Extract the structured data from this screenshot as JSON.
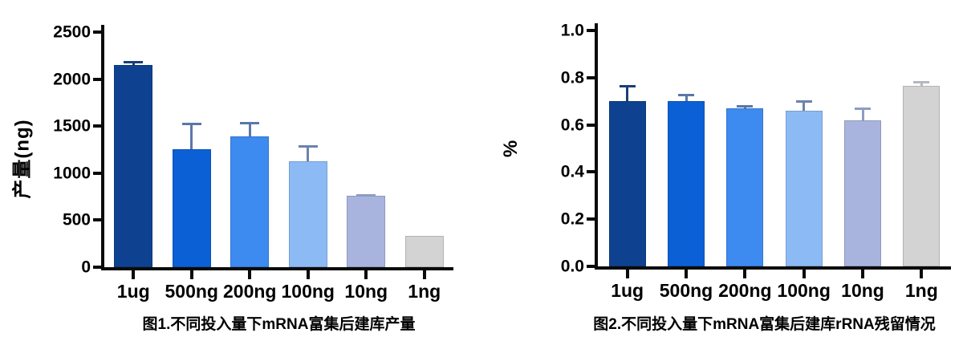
{
  "figure": {
    "background": "#ffffff",
    "axis_color": "#0a0a0a",
    "text_color": "#000000"
  },
  "chart_data": [
    {
      "type": "bar",
      "title": "图1.不同投入量下mRNA富集后建库产量",
      "ylabel": "产量(ng)",
      "xlabel": "",
      "ylim": [
        0,
        2500
      ],
      "yticks": [
        0,
        500,
        1000,
        1500,
        2000,
        2500
      ],
      "ytick_labels": [
        "0",
        "500",
        "1000",
        "1500",
        "2000",
        "2500"
      ],
      "categories": [
        "1ug",
        "500ng",
        "200ng",
        "100ng",
        "10ng",
        "1ng"
      ],
      "series": [
        {
          "name": "产量(ng)",
          "values": [
            2150,
            1255,
            1390,
            1130,
            760,
            330
          ],
          "errors": [
            40,
            280,
            155,
            170,
            15,
            0
          ]
        }
      ],
      "bar_colors": [
        "#0e4291",
        "#0c60d6",
        "#3d8af0",
        "#8cbaf4",
        "#a9b4de",
        "#d3d3d3"
      ],
      "error_colors": [
        "#1b3f77",
        "#5b77a8",
        "#5b77a8",
        "#6a83ad",
        "#8d9cc9",
        "#b5b8c0"
      ],
      "grid": false,
      "legend_position": "none"
    },
    {
      "type": "bar",
      "title": "图2.不同投入量下mRNA富集后建库rRNA残留情况",
      "ylabel": "%",
      "xlabel": "",
      "ylim": [
        0,
        1.0
      ],
      "yticks": [
        0,
        0.2,
        0.4,
        0.6,
        0.8,
        1.0
      ],
      "ytick_labels": [
        "0.0",
        "0.2",
        "0.4",
        "0.6",
        "0.8",
        "1.0"
      ],
      "categories": [
        "1ug",
        "500ng",
        "200ng",
        "100ng",
        "10ng",
        "1ng"
      ],
      "series": [
        {
          "name": "rRNA残留",
          "values": [
            0.7,
            0.7,
            0.67,
            0.66,
            0.62,
            0.765
          ],
          "errors": [
            0.07,
            0.03,
            0.015,
            0.045,
            0.055,
            0.02
          ]
        }
      ],
      "bar_colors": [
        "#0e4291",
        "#0c60d6",
        "#3d8af0",
        "#8cbaf4",
        "#a9b4de",
        "#d3d3d3"
      ],
      "error_colors": [
        "#1b3f77",
        "#5b77a8",
        "#5b77a8",
        "#6a83ad",
        "#8d9cc9",
        "#b5b8c0"
      ],
      "grid": false,
      "legend_position": "none"
    }
  ]
}
